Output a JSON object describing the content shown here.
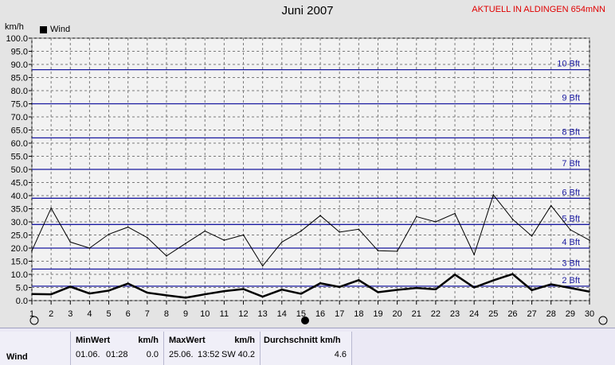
{
  "header": {
    "title": "Juni 2007",
    "station": "AKTUELL IN ALDINGEN 654mNN",
    "unit": "km/h",
    "legend_label": "Wind"
  },
  "chart_data": {
    "type": "line",
    "title": "Juni 2007",
    "ylabel": "km/h",
    "ylim": [
      0,
      100
    ],
    "y_tick_step": 5,
    "x": [
      1,
      2,
      3,
      4,
      5,
      6,
      7,
      8,
      9,
      10,
      11,
      12,
      13,
      14,
      15,
      16,
      17,
      18,
      19,
      20,
      21,
      22,
      23,
      24,
      25,
      26,
      27,
      28,
      29,
      30
    ],
    "series": [
      {
        "name": "Wind",
        "role": "avg",
        "values": [
          2.5,
          2.4,
          5.3,
          2.7,
          3.8,
          6.5,
          3,
          2,
          1.1,
          2.4,
          3.6,
          4.4,
          1.5,
          4.2,
          2.6,
          6.6,
          5.2,
          7.8,
          3.2,
          4.1,
          4.8,
          4.3,
          9.9,
          5,
          7.7,
          10.1,
          4,
          6.2,
          4.8,
          3.4
        ]
      },
      {
        "role": "max",
        "values": [
          19,
          35.2,
          22.3,
          20,
          25.3,
          28,
          24,
          17,
          21.8,
          26.5,
          23,
          25,
          13.2,
          22.3,
          26.5,
          32.4,
          26.1,
          27.2,
          19,
          18.8,
          32,
          30,
          33.2,
          17.5,
          40.3,
          31,
          24.6,
          36.2,
          27,
          23
        ]
      }
    ],
    "beaufort_levels": [
      {
        "label": "2 Bft",
        "value": 5.5
      },
      {
        "label": "3 Bft",
        "value": 12
      },
      {
        "label": "4 Bft",
        "value": 20
      },
      {
        "label": "5 Bft",
        "value": 29
      },
      {
        "label": "6 Bft",
        "value": 39
      },
      {
        "label": "7 Bft",
        "value": 50
      },
      {
        "label": "8 Bft",
        "value": 62
      },
      {
        "label": "9 Bft",
        "value": 75
      },
      {
        "label": "10 Bft",
        "value": 88
      }
    ],
    "grid": true,
    "legend": "top-left",
    "colors": {
      "line": "#000000",
      "grid": "#7a7a7a",
      "beaufort": "#1a1aa0",
      "bft_text": "#1a1aa0"
    }
  },
  "stats": {
    "row_label": "Wind",
    "min_header": "MinWert",
    "min_unit": "km/h",
    "min_date": "01.06.",
    "min_time": "01:28",
    "min_value": "0.0",
    "max_header": "MaxWert",
    "max_unit": "km/h",
    "max_date": "25.06.",
    "max_time": "13:52",
    "max_dir": "SW",
    "max_value": "40.2",
    "avg_header": "Durchschnitt km/h",
    "avg_value": "4.6"
  }
}
